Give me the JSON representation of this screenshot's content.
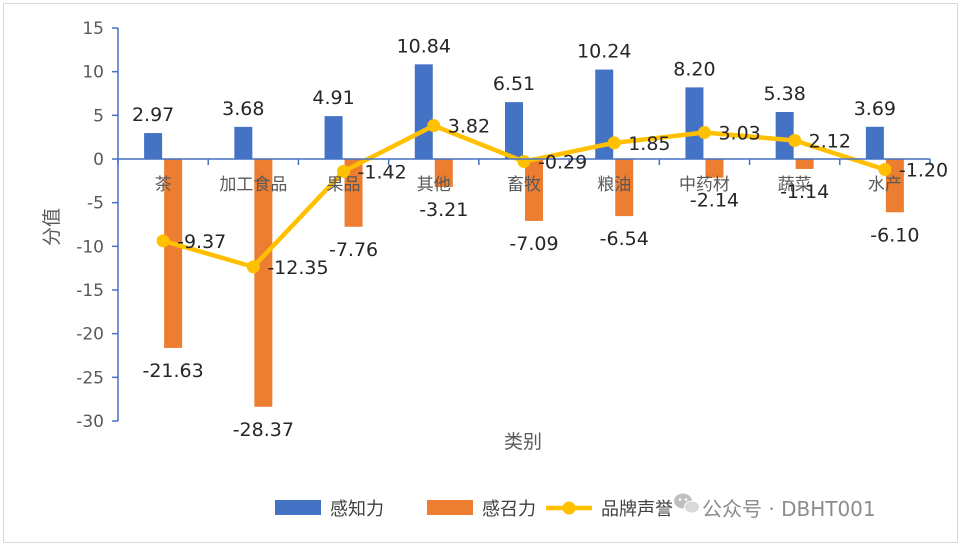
{
  "chart_data": {
    "type": "bar",
    "categories": [
      "茶",
      "加工食品",
      "果品",
      "其他",
      "畜牧",
      "粮油",
      "中药材",
      "蔬菜",
      "水产"
    ],
    "series": [
      {
        "name": "感知力",
        "kind": "bar",
        "color": "#4472c4",
        "values": [
          2.97,
          3.68,
          4.91,
          10.84,
          6.51,
          10.24,
          8.2,
          5.38,
          3.69
        ],
        "labels": [
          "2.97",
          "3.68",
          "4.91",
          "10.84",
          "6.51",
          "10.24",
          "8.20",
          "5.38",
          "3.69"
        ]
      },
      {
        "name": "感召力",
        "kind": "bar",
        "color": "#ed7d31",
        "values": [
          -21.63,
          -28.37,
          -7.76,
          -3.21,
          -7.09,
          -6.54,
          -2.14,
          -1.14,
          -6.1
        ],
        "labels": [
          "-21.63",
          "-28.37",
          "-7.76",
          "-3.21",
          "-7.09",
          "-6.54",
          "-2.14",
          "-1.14",
          "-6.10"
        ]
      },
      {
        "name": "品牌声誉",
        "kind": "line",
        "color": "#ffc000",
        "values": [
          -9.37,
          -12.35,
          -1.42,
          3.82,
          -0.29,
          1.85,
          3.03,
          2.12,
          -1.2
        ],
        "labels": [
          "-9.37",
          "-12.35",
          "-1.42",
          "3.82",
          "-0.29",
          "1.85",
          "3.03",
          "2.12",
          "-1.20"
        ]
      }
    ],
    "xlabel": "类别",
    "ylabel": "分值",
    "ylim": [
      -30,
      15
    ],
    "yticks": [
      15,
      10,
      5,
      0,
      -5,
      -10,
      -15,
      -20,
      -25,
      -30
    ],
    "grid": false,
    "legend": "bottom"
  },
  "watermark": "公众号 · DBHT001"
}
